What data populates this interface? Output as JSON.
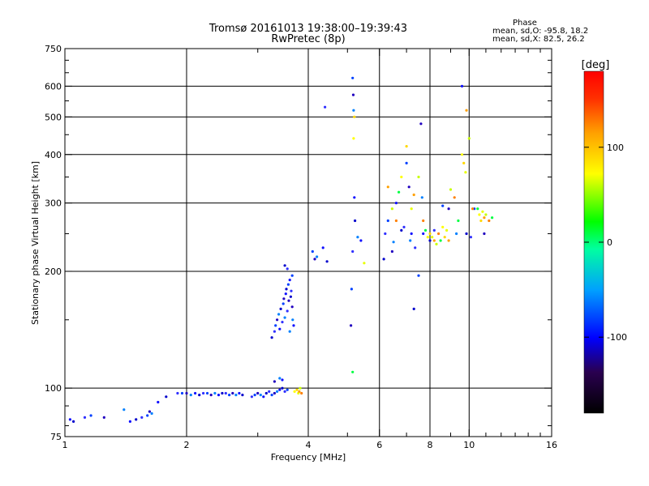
{
  "header": {
    "title_line1": "Tromsø 20161013 19:38:00–19:39:43",
    "title_line2": "RwPretec (8p)"
  },
  "phase_box": {
    "title": "Phase",
    "o_line": "mean, sd,O: -95.8, 18.2",
    "x_line": "mean, sd,X:  82.5, 26.2"
  },
  "chart_data": {
    "type": "scatter",
    "xlabel": "Frequency [MHz]",
    "ylabel": "Stationary phase Virtual Height [km]",
    "xscale": "log",
    "yscale": "log",
    "xlim": [
      1,
      16
    ],
    "ylim": [
      75,
      750
    ],
    "x_ticks": [
      1,
      2,
      4,
      6,
      8,
      10,
      16
    ],
    "x_tick_labels": [
      "1",
      "2",
      "4",
      "6",
      "8",
      "10",
      "16"
    ],
    "x_minor_ticks": [
      3,
      5,
      7,
      9,
      11,
      12,
      13,
      14,
      15
    ],
    "y_ticks": [
      75,
      100,
      200,
      300,
      400,
      500,
      600,
      750
    ],
    "y_tick_labels": [
      "75",
      "100",
      "200",
      "300",
      "400",
      "500",
      "600",
      "750"
    ],
    "y_minor_ticks": [
      80,
      90,
      150,
      250,
      350,
      450,
      550,
      650,
      700
    ],
    "grid_x": [
      2,
      4,
      6,
      8,
      10
    ],
    "grid_y": [
      100,
      200,
      300,
      400,
      500,
      600
    ],
    "colorbar": {
      "label": "[deg]",
      "range": [
        -180,
        180
      ],
      "ticks": [
        100,
        0,
        -100
      ],
      "tick_labels": [
        "100",
        "0",
        "-100"
      ]
    },
    "series": [
      {
        "mode": "O",
        "points": [
          [
            1.03,
            83
          ],
          [
            1.05,
            82
          ],
          [
            1.12,
            84
          ],
          [
            1.16,
            85
          ],
          [
            1.25,
            84
          ],
          [
            1.4,
            88
          ],
          [
            1.45,
            82
          ],
          [
            1.5,
            83
          ],
          [
            1.55,
            84
          ],
          [
            1.6,
            85
          ],
          [
            1.62,
            87
          ],
          [
            1.64,
            86
          ],
          [
            1.7,
            92
          ],
          [
            1.78,
            95
          ],
          [
            1.9,
            97
          ],
          [
            1.95,
            97
          ],
          [
            2.0,
            97
          ],
          [
            2.05,
            96
          ],
          [
            2.1,
            97
          ],
          [
            2.15,
            96
          ],
          [
            2.2,
            97
          ],
          [
            2.25,
            97
          ],
          [
            2.3,
            96
          ],
          [
            2.35,
            97
          ],
          [
            2.4,
            96
          ],
          [
            2.45,
            97
          ],
          [
            2.5,
            97
          ],
          [
            2.55,
            96
          ],
          [
            2.6,
            97
          ],
          [
            2.65,
            96
          ],
          [
            2.7,
            97
          ],
          [
            2.75,
            96
          ],
          [
            2.9,
            95
          ],
          [
            2.95,
            96
          ],
          [
            3.0,
            97
          ],
          [
            3.05,
            96
          ],
          [
            3.1,
            95
          ],
          [
            3.15,
            97
          ],
          [
            3.2,
            98
          ],
          [
            3.25,
            96
          ],
          [
            3.3,
            97
          ],
          [
            3.35,
            98
          ],
          [
            3.4,
            99
          ],
          [
            3.45,
            100
          ],
          [
            3.5,
            98
          ],
          [
            3.55,
            99
          ],
          [
            3.3,
            104
          ],
          [
            3.4,
            106
          ],
          [
            3.45,
            105
          ],
          [
            3.25,
            135
          ],
          [
            3.3,
            140
          ],
          [
            3.32,
            145
          ],
          [
            3.35,
            150
          ],
          [
            3.38,
            155
          ],
          [
            3.4,
            142
          ],
          [
            3.42,
            160
          ],
          [
            3.45,
            148
          ],
          [
            3.47,
            165
          ],
          [
            3.48,
            170
          ],
          [
            3.5,
            152
          ],
          [
            3.52,
            175
          ],
          [
            3.53,
            180
          ],
          [
            3.55,
            158
          ],
          [
            3.57,
            185
          ],
          [
            3.58,
            168
          ],
          [
            3.6,
            140
          ],
          [
            3.6,
            190
          ],
          [
            3.62,
            172
          ],
          [
            3.63,
            178
          ],
          [
            3.65,
            195
          ],
          [
            3.65,
            162
          ],
          [
            3.66,
            150
          ],
          [
            3.68,
            145
          ],
          [
            3.5,
            207
          ],
          [
            3.55,
            203
          ],
          [
            4.1,
            225
          ],
          [
            4.15,
            215
          ],
          [
            4.2,
            218
          ],
          [
            4.35,
            230
          ],
          [
            4.45,
            212
          ],
          [
            4.4,
            530
          ],
          [
            5.15,
            630
          ],
          [
            5.17,
            570
          ],
          [
            5.18,
            520
          ],
          [
            5.2,
            310
          ],
          [
            5.22,
            270
          ],
          [
            5.15,
            225
          ],
          [
            5.12,
            180
          ],
          [
            5.1,
            145
          ],
          [
            5.3,
            245
          ],
          [
            5.4,
            240
          ],
          [
            6.15,
            215
          ],
          [
            6.2,
            250
          ],
          [
            6.3,
            270
          ],
          [
            6.45,
            225
          ],
          [
            6.5,
            238
          ],
          [
            6.6,
            300
          ],
          [
            6.8,
            255
          ],
          [
            6.9,
            260
          ],
          [
            7.0,
            380
          ],
          [
            7.1,
            330
          ],
          [
            7.15,
            240
          ],
          [
            7.2,
            250
          ],
          [
            7.3,
            160
          ],
          [
            7.35,
            230
          ],
          [
            7.5,
            195
          ],
          [
            7.6,
            480
          ],
          [
            7.65,
            310
          ],
          [
            7.7,
            250
          ],
          [
            8.0,
            240
          ],
          [
            8.2,
            255
          ],
          [
            8.6,
            295
          ],
          [
            8.9,
            290
          ],
          [
            9.3,
            250
          ],
          [
            9.6,
            600
          ],
          [
            9.85,
            250
          ],
          [
            10.1,
            245
          ],
          [
            10.3,
            290
          ],
          [
            10.9,
            250
          ]
        ]
      },
      {
        "mode": "X",
        "points": [
          [
            3.7,
            98
          ],
          [
            3.75,
            99
          ],
          [
            3.78,
            97
          ],
          [
            3.8,
            98
          ],
          [
            3.82,
            100
          ],
          [
            3.85,
            97
          ],
          [
            5.15,
            110
          ],
          [
            5.18,
            440
          ],
          [
            5.2,
            500
          ],
          [
            5.5,
            210
          ],
          [
            6.3,
            330
          ],
          [
            6.45,
            290
          ],
          [
            6.6,
            270
          ],
          [
            6.7,
            320
          ],
          [
            6.8,
            350
          ],
          [
            7.0,
            420
          ],
          [
            7.2,
            290
          ],
          [
            7.3,
            315
          ],
          [
            7.5,
            350
          ],
          [
            7.7,
            270
          ],
          [
            7.8,
            255
          ],
          [
            7.9,
            245
          ],
          [
            8.0,
            250
          ],
          [
            8.1,
            245
          ],
          [
            8.2,
            240
          ],
          [
            8.3,
            235
          ],
          [
            8.4,
            250
          ],
          [
            8.5,
            240
          ],
          [
            8.6,
            260
          ],
          [
            8.7,
            245
          ],
          [
            8.8,
            255
          ],
          [
            8.9,
            240
          ],
          [
            9.0,
            325
          ],
          [
            9.2,
            310
          ],
          [
            9.4,
            270
          ],
          [
            9.6,
            400
          ],
          [
            9.7,
            380
          ],
          [
            9.8,
            360
          ],
          [
            9.85,
            520
          ],
          [
            10.0,
            440
          ],
          [
            10.2,
            290
          ],
          [
            10.5,
            290
          ],
          [
            10.6,
            280
          ],
          [
            10.7,
            270
          ],
          [
            10.8,
            285
          ],
          [
            10.9,
            275
          ],
          [
            11.0,
            280
          ],
          [
            11.2,
            270
          ],
          [
            11.4,
            275
          ]
        ]
      }
    ]
  }
}
